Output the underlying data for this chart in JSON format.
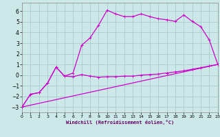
{
  "xlabel": "Windchill (Refroidissement éolien,°C)",
  "bg_color": "#cce8e8",
  "grid_color": "#aacccc",
  "line_color": "#cc00cc",
  "xlim": [
    0,
    23
  ],
  "ylim": [
    -3.5,
    6.8
  ],
  "xticks": [
    0,
    1,
    2,
    3,
    4,
    5,
    6,
    7,
    8,
    9,
    10,
    11,
    12,
    13,
    14,
    15,
    16,
    17,
    18,
    19,
    20,
    21,
    22,
    23
  ],
  "yticks": [
    -3,
    -2,
    -1,
    0,
    1,
    2,
    3,
    4,
    5,
    6
  ],
  "curve1_x": [
    0,
    1,
    2,
    3,
    4,
    5,
    6,
    7,
    8,
    9,
    10,
    11,
    12,
    13,
    14,
    15,
    16,
    17,
    18,
    19,
    20,
    21,
    22,
    23
  ],
  "curve1_y": [
    -3.0,
    -1.8,
    -1.65,
    -0.75,
    0.75,
    -0.1,
    -0.15,
    0.05,
    -0.1,
    -0.2,
    -0.15,
    -0.15,
    -0.1,
    -0.1,
    0.0,
    0.05,
    0.1,
    0.2,
    0.3,
    0.4,
    0.55,
    0.7,
    0.85,
    1.0
  ],
  "curve2_x": [
    0,
    1,
    2,
    3,
    4,
    5,
    6,
    7,
    8,
    9,
    10,
    11,
    12,
    13,
    14,
    15,
    16,
    17,
    18,
    19,
    20,
    21,
    22,
    23
  ],
  "curve2_y": [
    -3.0,
    -1.8,
    -1.65,
    -0.75,
    0.75,
    -0.1,
    0.2,
    2.8,
    3.5,
    4.7,
    6.1,
    5.75,
    5.5,
    5.5,
    5.75,
    5.5,
    5.3,
    5.2,
    5.05,
    5.65,
    5.05,
    4.55,
    3.3,
    1.0
  ],
  "curve3_x": [
    0,
    23
  ],
  "curve3_y": [
    -3.0,
    1.0
  ]
}
